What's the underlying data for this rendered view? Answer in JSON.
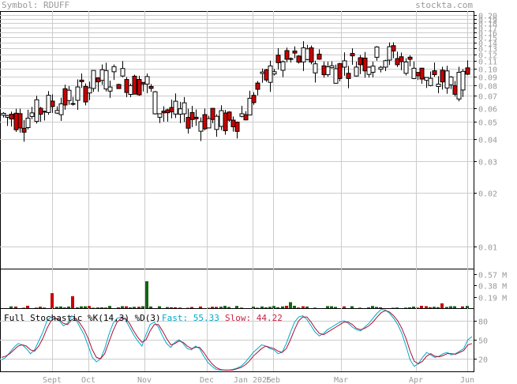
{
  "header": {
    "symbol_label": "Symbol: RDUFF",
    "site": "stockta.com"
  },
  "chart_data": [
    {
      "type": "candlestick",
      "panel": "price",
      "y_scale": "log",
      "y_ticks": [
        "0.20",
        "0.19",
        "0.18",
        "0.17",
        "0.16",
        "0.15",
        "0.14",
        "0.13",
        "0.12",
        "0.11",
        "0.10",
        "0.09",
        "0.08",
        "0.07",
        "0.06",
        "0.05",
        "0.04",
        "0.03",
        "0.02",
        "0.01"
      ],
      "x_ticks": [
        "Sept",
        "Oct",
        "Nov",
        "Dec",
        "Jan 2025",
        "Feb",
        "Mar",
        "Apr",
        "Jun"
      ],
      "grid": true
    },
    {
      "type": "bar",
      "panel": "volume",
      "y_ticks": [
        "0.57 M",
        "0.38 M",
        "0.19 M"
      ]
    },
    {
      "type": "line",
      "panel": "stochastic",
      "title": "Full Stochastic %K(14,3) %D(3)",
      "fast_label": "Fast: 55.33",
      "slow_label": "Slow: 44.22",
      "y_ticks": [
        "80",
        "50",
        "20"
      ],
      "series": [
        {
          "name": "Fast",
          "color": "#00aacc",
          "values": [
            18,
            22,
            30,
            38,
            44,
            42,
            36,
            28,
            34,
            48,
            62,
            80,
            86,
            84,
            80,
            72,
            76,
            88,
            82,
            70,
            58,
            40,
            22,
            15,
            20,
            36,
            58,
            76,
            84,
            86,
            82,
            70,
            58,
            48,
            40,
            58,
            74,
            78,
            70,
            56,
            44,
            38,
            46,
            50,
            44,
            36,
            34,
            40,
            36,
            24,
            14,
            8,
            3,
            2,
            2,
            2,
            3,
            5,
            8,
            14,
            22,
            30,
            36,
            42,
            40,
            36,
            34,
            28,
            30,
            44,
            62,
            78,
            86,
            88,
            82,
            72,
            62,
            56,
            60,
            66,
            70,
            74,
            78,
            80,
            76,
            70,
            66,
            64,
            70,
            76,
            84,
            92,
            98,
            97,
            92,
            84,
            74,
            60,
            40,
            18,
            8,
            12,
            22,
            30,
            26,
            22,
            24,
            28,
            30,
            26,
            28,
            32,
            36,
            50,
            55
          ]
        },
        {
          "name": "Slow",
          "color": "#aa1133",
          "values": [
            22,
            24,
            28,
            34,
            40,
            42,
            40,
            34,
            32,
            40,
            52,
            68,
            80,
            84,
            82,
            76,
            74,
            82,
            84,
            76,
            66,
            52,
            34,
            22,
            20,
            28,
            46,
            64,
            78,
            84,
            84,
            76,
            64,
            54,
            46,
            50,
            64,
            74,
            74,
            64,
            52,
            42,
            44,
            48,
            46,
            40,
            36,
            38,
            38,
            30,
            20,
            12,
            6,
            3,
            2,
            2,
            2,
            4,
            6,
            10,
            16,
            24,
            30,
            36,
            40,
            38,
            36,
            32,
            30,
            36,
            50,
            66,
            80,
            86,
            86,
            78,
            68,
            60,
            58,
            62,
            66,
            70,
            74,
            78,
            78,
            74,
            68,
            66,
            68,
            72,
            78,
            86,
            93,
            96,
            94,
            88,
            80,
            68,
            52,
            32,
            16,
            12,
            16,
            24,
            28,
            24,
            23,
            25,
            28,
            28,
            27,
            30,
            33,
            42,
            44
          ]
        }
      ]
    }
  ],
  "colors": {
    "up": "#ffffff",
    "down": "#cc0000",
    "volume": "#116611",
    "volume_down": "#cc0000",
    "grid": "#cccccc"
  }
}
